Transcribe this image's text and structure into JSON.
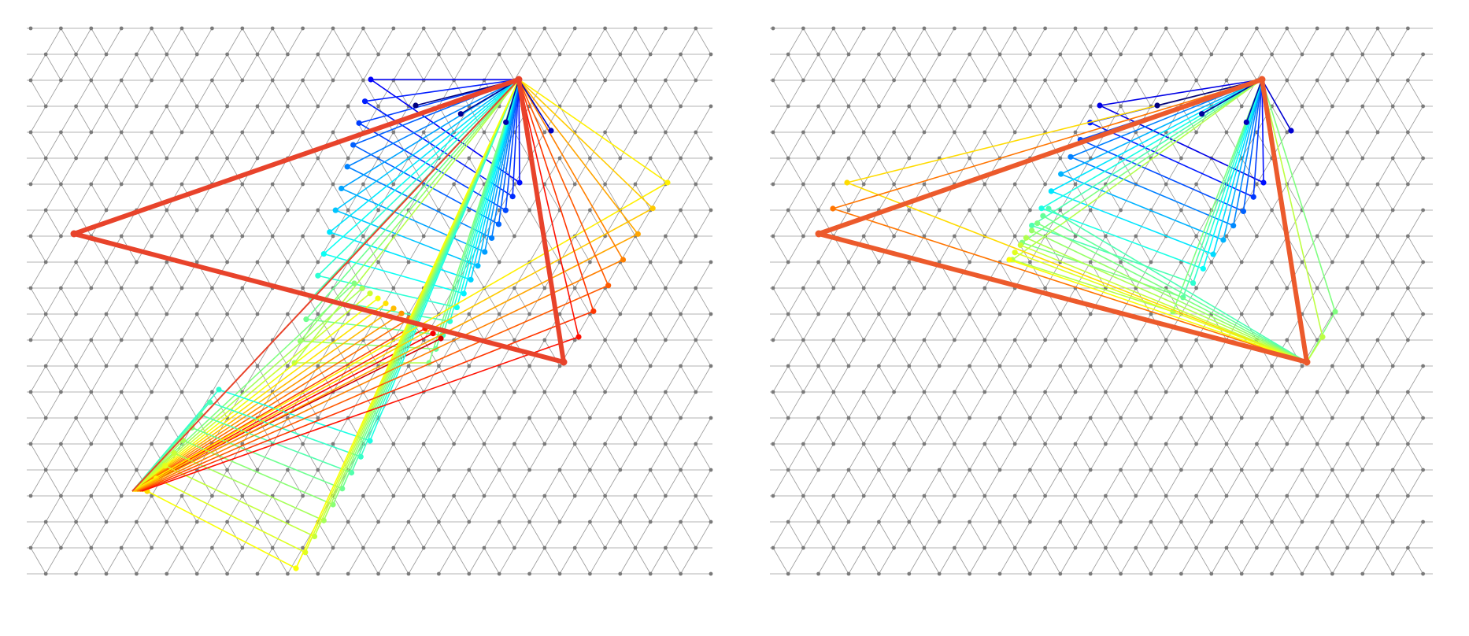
{
  "panels": [
    {
      "id": "left",
      "grid": {
        "node_color": "#7a7a7a",
        "line_color": "#9a9a9a"
      },
      "outline_triangle": {
        "color": "#e8432b"
      },
      "fan_families": [
        {
          "name": "upper",
          "count": 14
        },
        {
          "name": "middle",
          "count": 12
        },
        {
          "name": "lower",
          "count": 9
        }
      ]
    },
    {
      "id": "right",
      "grid": {
        "node_color": "#7a7a7a",
        "line_color": "#9a9a9a"
      },
      "outline_triangle": {
        "color": "#ec5a2c"
      },
      "fan_families": [
        {
          "name": "upper",
          "count": 10
        },
        {
          "name": "right",
          "count": 8
        },
        {
          "name": "left",
          "count": 6
        }
      ]
    }
  ],
  "palette": "jet"
}
